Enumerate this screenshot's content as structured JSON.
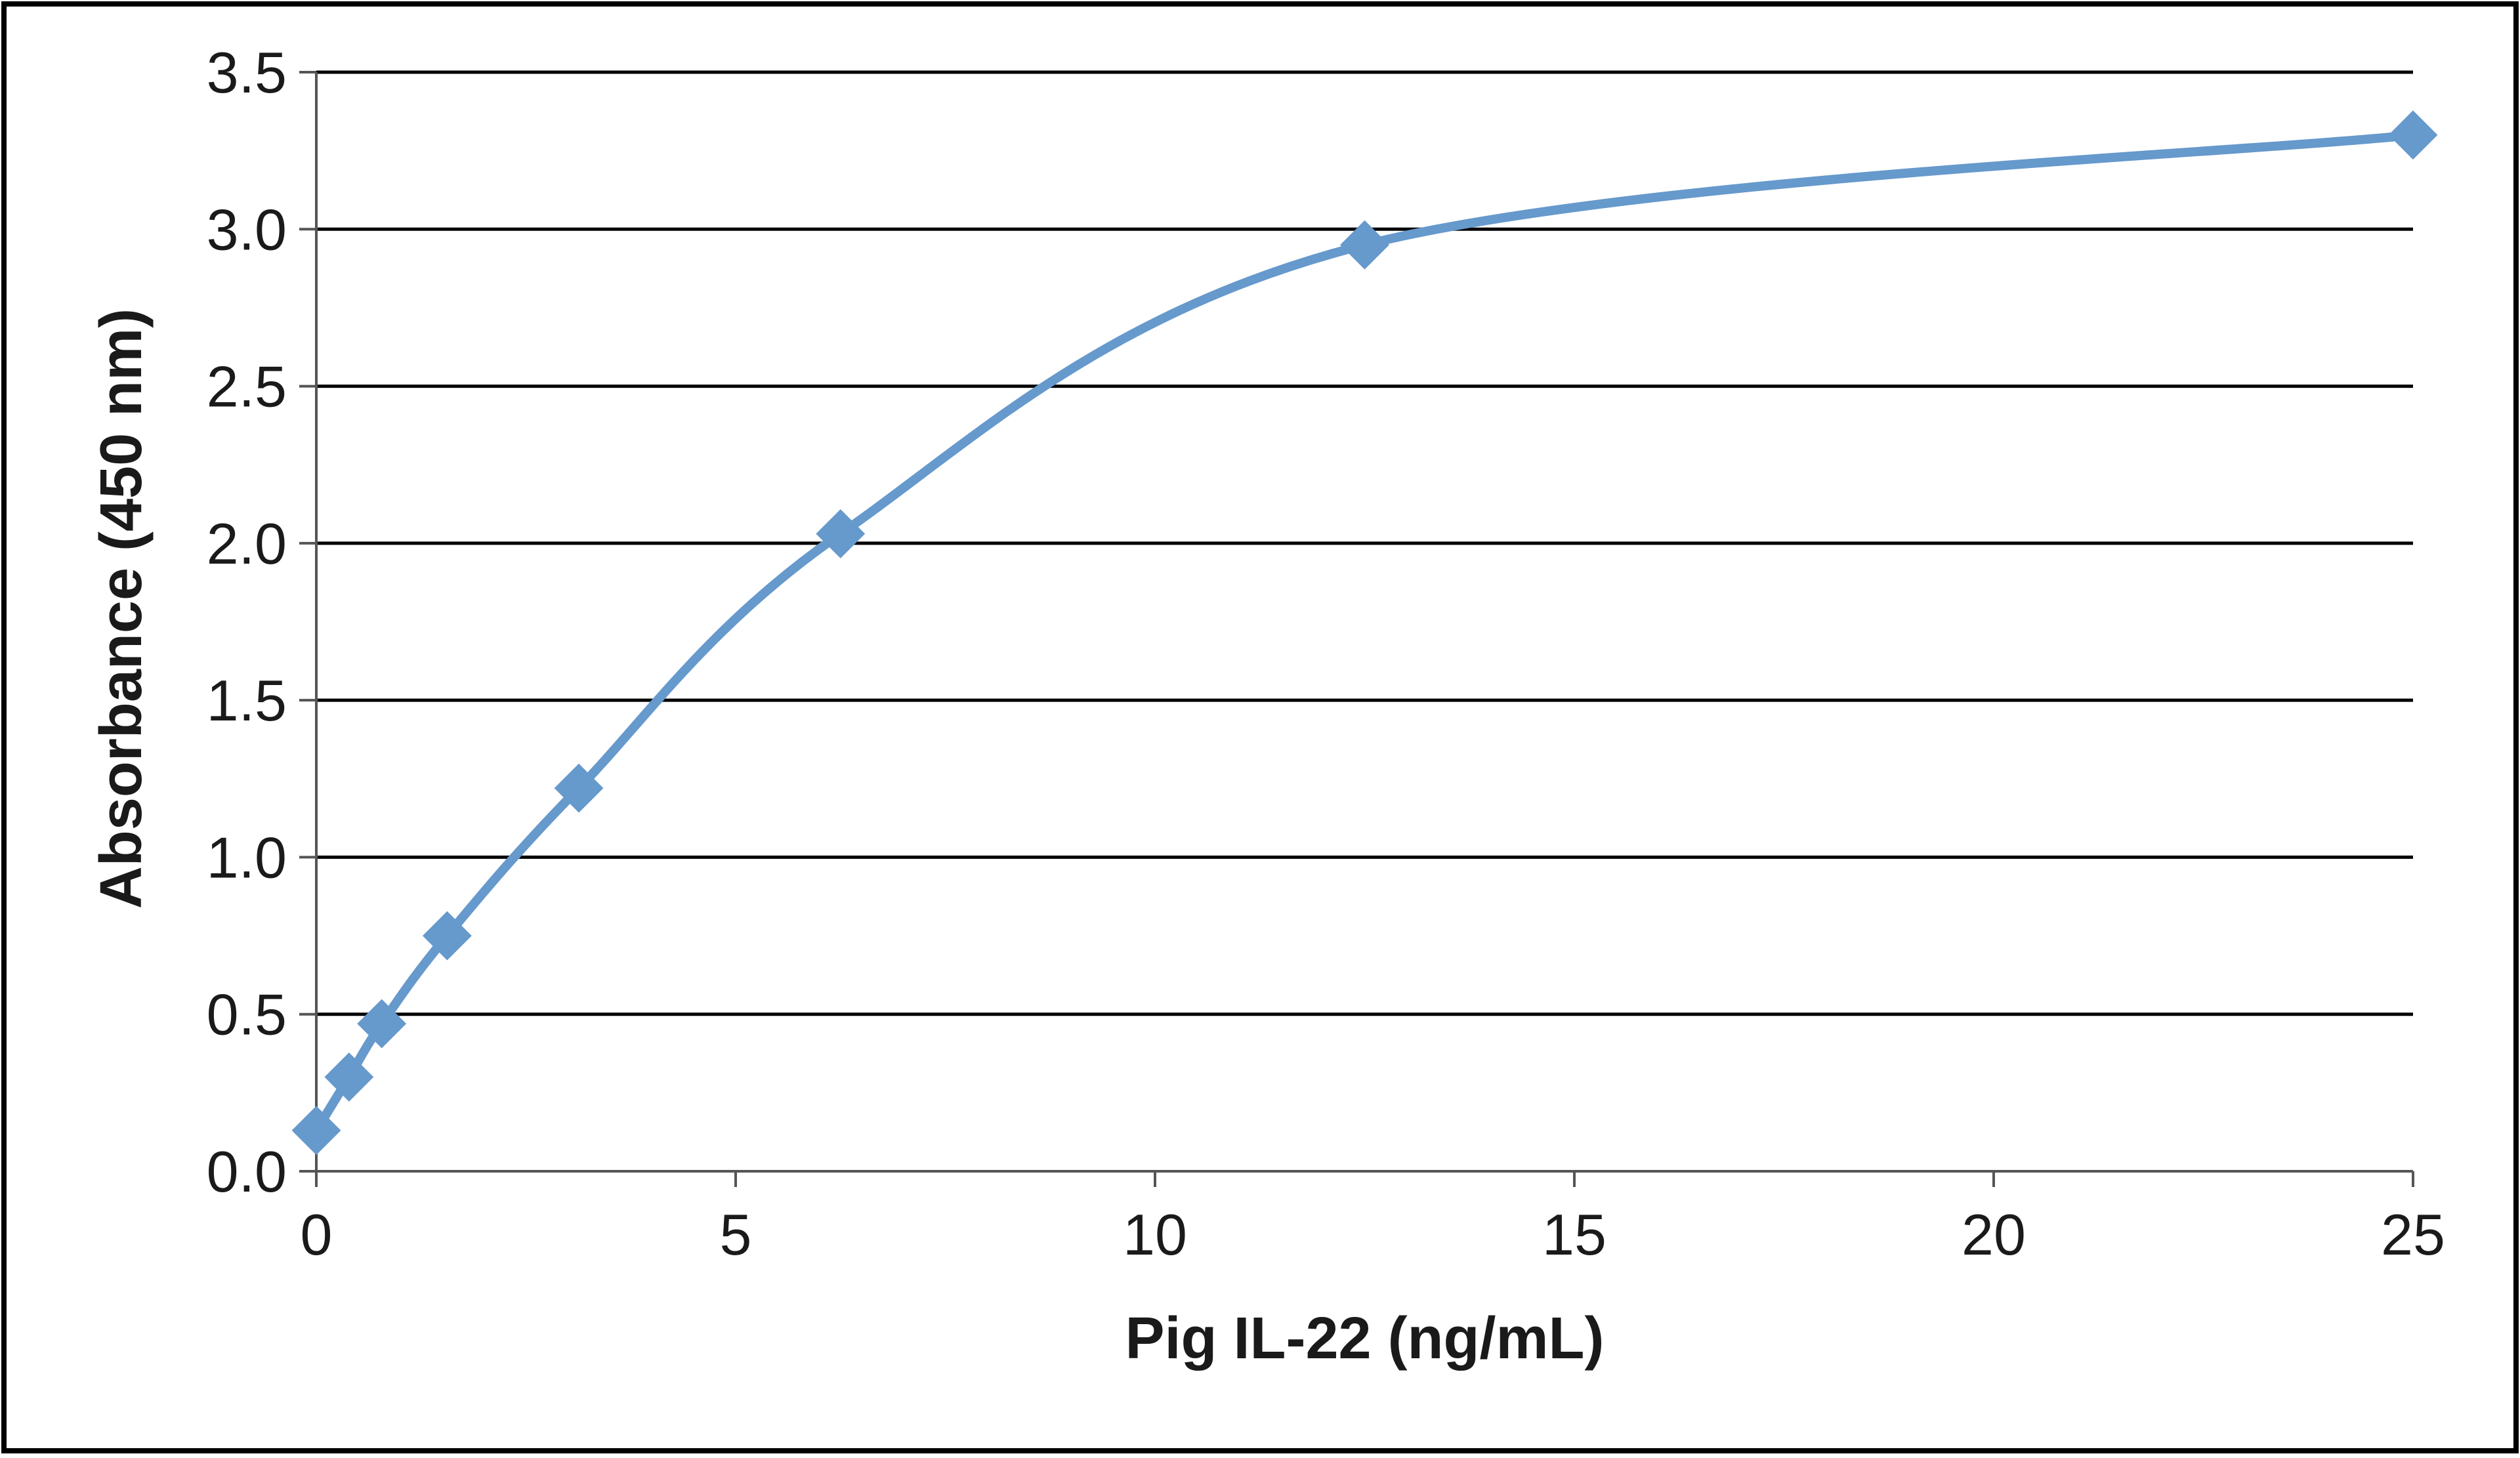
{
  "chart_data": {
    "type": "scatter",
    "title": "",
    "xlabel": "Pig IL-22 (ng/mL)",
    "ylabel": "Absorbance  (450 nm)",
    "xlim": [
      0,
      25
    ],
    "ylim": [
      0,
      3.5
    ],
    "x_ticks": [
      "0",
      "5",
      "10",
      "15",
      "20",
      "25"
    ],
    "y_ticks": [
      "0.0",
      "0.5",
      "1.0",
      "1.5",
      "2.0",
      "2.5",
      "3.0",
      "3.5"
    ],
    "grid": "horizontal",
    "legend": "none",
    "line_style": "smoothed",
    "marker": "diamond",
    "series": [
      {
        "color": "#6699CC",
        "points": [
          {
            "x": 0,
            "y": 0.13
          },
          {
            "x": 0.39,
            "y": 0.3
          },
          {
            "x": 0.78,
            "y": 0.47
          },
          {
            "x": 1.56,
            "y": 0.75
          },
          {
            "x": 3.13,
            "y": 1.22
          },
          {
            "x": 6.25,
            "y": 2.03
          },
          {
            "x": 12.5,
            "y": 2.95
          },
          {
            "x": 25,
            "y": 3.3
          }
        ]
      }
    ]
  }
}
